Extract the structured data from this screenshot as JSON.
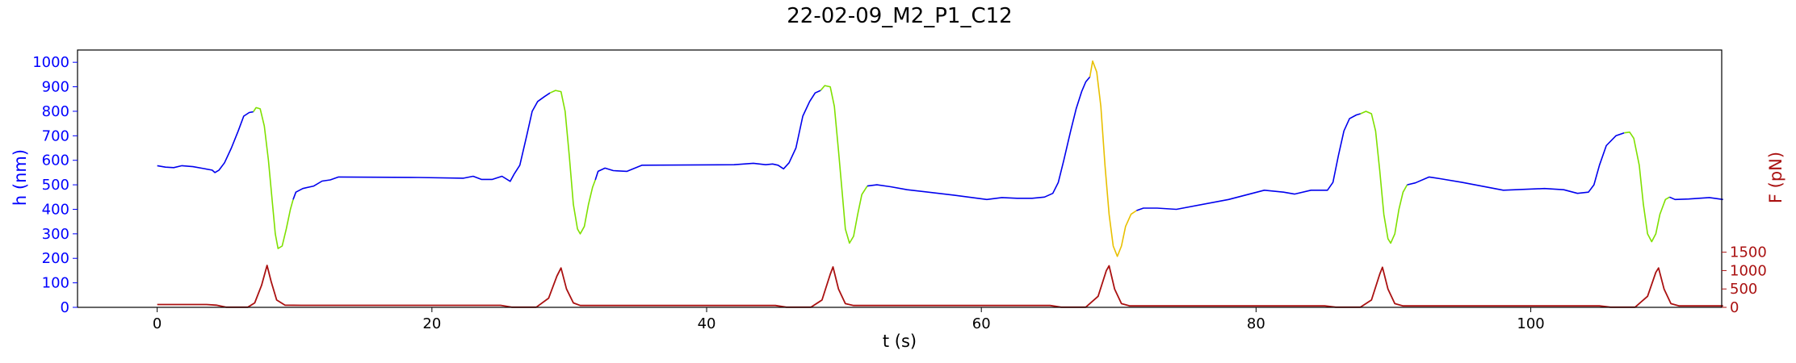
{
  "chart_data": {
    "type": "line",
    "title": "22-02-09_M2_P1_C12",
    "xlabel": "t (s)",
    "ylabel_left": "h (nm)",
    "ylabel_right": "F (pN)",
    "xlim": [
      -5.8,
      113.9
    ],
    "ylim_left": [
      0,
      1050
    ],
    "ylim_right": [
      0,
      7000
    ],
    "x_ticks": [
      0,
      20,
      40,
      60,
      80,
      100
    ],
    "y_ticks_left": [
      0,
      100,
      200,
      300,
      400,
      500,
      600,
      700,
      800,
      900,
      1000
    ],
    "y_ticks_right": [
      0,
      500,
      1000,
      1500
    ],
    "grid": false,
    "colors": {
      "height_base": "#0000ee",
      "height_retract": "#7fe000",
      "height_retract_alt": "#e8c000",
      "force": "#aa1111",
      "left_axis": "#0000ff",
      "right_axis": "#aa1111"
    },
    "height_segments": [
      {
        "color": "height_base",
        "points": [
          [
            0,
            578
          ],
          [
            0.6,
            572
          ],
          [
            1.2,
            570
          ],
          [
            1.8,
            578
          ],
          [
            2.6,
            574
          ],
          [
            3.4,
            566
          ],
          [
            4,
            560
          ],
          [
            4.2,
            550
          ],
          [
            4.5,
            560
          ],
          [
            4.9,
            590
          ],
          [
            5.4,
            650
          ],
          [
            5.9,
            720
          ],
          [
            6.3,
            780
          ],
          [
            6.7,
            795
          ],
          [
            7.0,
            798
          ]
        ]
      },
      {
        "color": "height_retract",
        "points": [
          [
            7.0,
            798
          ],
          [
            7.2,
            815
          ],
          [
            7.5,
            810
          ],
          [
            7.8,
            740
          ],
          [
            8.1,
            600
          ],
          [
            8.4,
            420
          ],
          [
            8.6,
            300
          ],
          [
            8.8,
            240
          ],
          [
            9.1,
            250
          ],
          [
            9.4,
            320
          ],
          [
            9.7,
            400
          ],
          [
            9.9,
            440
          ]
        ]
      },
      {
        "color": "height_base",
        "points": [
          [
            9.9,
            440
          ],
          [
            10.1,
            470
          ],
          [
            10.6,
            485
          ],
          [
            11.4,
            495
          ],
          [
            12.0,
            515
          ],
          [
            12.6,
            520
          ],
          [
            13.2,
            532
          ],
          [
            19,
            530
          ],
          [
            22.3,
            527
          ],
          [
            23,
            535
          ],
          [
            23.6,
            522
          ],
          [
            24.4,
            522
          ],
          [
            25.1,
            535
          ],
          [
            25.7,
            514
          ],
          [
            26,
            545
          ],
          [
            26.4,
            580
          ],
          [
            26.9,
            700
          ],
          [
            27.3,
            800
          ],
          [
            27.7,
            840
          ],
          [
            28.2,
            860
          ],
          [
            28.6,
            875
          ]
        ]
      },
      {
        "color": "height_retract",
        "points": [
          [
            28.6,
            875
          ],
          [
            29.0,
            885
          ],
          [
            29.4,
            880
          ],
          [
            29.7,
            800
          ],
          [
            30.0,
            620
          ],
          [
            30.3,
            420
          ],
          [
            30.6,
            320
          ],
          [
            30.8,
            300
          ],
          [
            31.1,
            330
          ],
          [
            31.4,
            420
          ],
          [
            31.7,
            490
          ],
          [
            31.9,
            520
          ]
        ]
      },
      {
        "color": "height_base",
        "points": [
          [
            31.9,
            520
          ],
          [
            32.1,
            555
          ],
          [
            32.6,
            568
          ],
          [
            33.2,
            558
          ],
          [
            34.2,
            555
          ],
          [
            35.3,
            580
          ],
          [
            42,
            582
          ],
          [
            43.4,
            588
          ],
          [
            44.3,
            582
          ],
          [
            44.8,
            585
          ],
          [
            45.2,
            580
          ],
          [
            45.6,
            565
          ],
          [
            46,
            590
          ],
          [
            46.5,
            650
          ],
          [
            47,
            780
          ],
          [
            47.5,
            840
          ],
          [
            47.9,
            875
          ],
          [
            48.3,
            885
          ]
        ]
      },
      {
        "color": "height_retract",
        "points": [
          [
            48.3,
            885
          ],
          [
            48.6,
            905
          ],
          [
            49.0,
            900
          ],
          [
            49.3,
            820
          ],
          [
            49.6,
            640
          ],
          [
            49.9,
            450
          ],
          [
            50.1,
            320
          ],
          [
            50.4,
            262
          ],
          [
            50.7,
            290
          ],
          [
            51.0,
            380
          ],
          [
            51.3,
            460
          ],
          [
            51.7,
            495
          ]
        ]
      },
      {
        "color": "height_base",
        "points": [
          [
            51.7,
            495
          ],
          [
            52.4,
            500
          ],
          [
            53.4,
            492
          ],
          [
            54.6,
            480
          ],
          [
            58,
            458
          ],
          [
            60.4,
            440
          ],
          [
            61.5,
            448
          ],
          [
            62.6,
            445
          ],
          [
            63.7,
            445
          ],
          [
            64.6,
            450
          ],
          [
            65.2,
            465
          ],
          [
            65.6,
            510
          ],
          [
            66.0,
            600
          ],
          [
            66.5,
            720
          ],
          [
            66.9,
            810
          ],
          [
            67.3,
            880
          ],
          [
            67.6,
            920
          ],
          [
            67.9,
            940
          ]
        ]
      },
      {
        "color": "height_retract_alt",
        "points": [
          [
            67.9,
            940
          ],
          [
            68.1,
            1005
          ],
          [
            68.4,
            960
          ],
          [
            68.7,
            820
          ],
          [
            69.0,
            580
          ],
          [
            69.3,
            380
          ],
          [
            69.6,
            250
          ],
          [
            69.9,
            208
          ],
          [
            70.2,
            250
          ],
          [
            70.5,
            330
          ],
          [
            70.9,
            380
          ],
          [
            71.3,
            395
          ]
        ]
      },
      {
        "color": "height_base",
        "points": [
          [
            71.3,
            395
          ],
          [
            71.8,
            405
          ],
          [
            72.8,
            405
          ],
          [
            74.2,
            400
          ],
          [
            78,
            440
          ],
          [
            80.6,
            478
          ],
          [
            82,
            470
          ],
          [
            82.8,
            462
          ],
          [
            84,
            478
          ],
          [
            85.2,
            478
          ],
          [
            85.6,
            510
          ],
          [
            86.0,
            620
          ],
          [
            86.4,
            720
          ],
          [
            86.8,
            770
          ],
          [
            87.3,
            785
          ],
          [
            87.6,
            790
          ]
        ]
      },
      {
        "color": "height_retract",
        "points": [
          [
            87.6,
            790
          ],
          [
            88.0,
            800
          ],
          [
            88.4,
            790
          ],
          [
            88.7,
            720
          ],
          [
            89.0,
            560
          ],
          [
            89.3,
            380
          ],
          [
            89.6,
            280
          ],
          [
            89.8,
            262
          ],
          [
            90.1,
            300
          ],
          [
            90.4,
            400
          ],
          [
            90.7,
            470
          ],
          [
            91.0,
            500
          ]
        ]
      },
      {
        "color": "height_base",
        "points": [
          [
            91.0,
            500
          ],
          [
            91.6,
            508
          ],
          [
            92.6,
            532
          ],
          [
            93.4,
            525
          ],
          [
            95,
            510
          ],
          [
            98,
            478
          ],
          [
            101,
            485
          ],
          [
            102.4,
            480
          ],
          [
            103.4,
            465
          ],
          [
            104.2,
            470
          ],
          [
            104.6,
            500
          ],
          [
            105,
            580
          ],
          [
            105.5,
            660
          ],
          [
            106.2,
            700
          ],
          [
            106.8,
            712
          ]
        ]
      },
      {
        "color": "height_retract",
        "points": [
          [
            106.8,
            712
          ],
          [
            107.2,
            715
          ],
          [
            107.5,
            690
          ],
          [
            107.9,
            580
          ],
          [
            108.2,
            420
          ],
          [
            108.5,
            300
          ],
          [
            108.8,
            268
          ],
          [
            109.1,
            300
          ],
          [
            109.4,
            380
          ],
          [
            109.8,
            440
          ],
          [
            110.1,
            450
          ]
        ]
      },
      {
        "color": "height_base",
        "points": [
          [
            110.1,
            450
          ],
          [
            110.5,
            440
          ],
          [
            111.5,
            442
          ],
          [
            113,
            448
          ],
          [
            114,
            440
          ]
        ]
      }
    ],
    "force_series": {
      "color": "force",
      "points": [
        [
          0,
          77
        ],
        [
          3.6,
          77
        ],
        [
          4.3,
          60
        ],
        [
          5.0,
          4
        ],
        [
          6.6,
          4
        ],
        [
          7.1,
          120
        ],
        [
          7.6,
          600
        ],
        [
          8.0,
          1140
        ],
        [
          8.3,
          700
        ],
        [
          8.7,
          200
        ],
        [
          9.3,
          60
        ],
        [
          10.5,
          55
        ],
        [
          25,
          55
        ],
        [
          25.8,
          5
        ],
        [
          27.6,
          5
        ],
        [
          28.5,
          250
        ],
        [
          29.1,
          850
        ],
        [
          29.4,
          1070
        ],
        [
          29.8,
          500
        ],
        [
          30.3,
          120
        ],
        [
          30.8,
          50
        ],
        [
          45,
          50
        ],
        [
          45.8,
          5
        ],
        [
          47.6,
          5
        ],
        [
          48.4,
          200
        ],
        [
          49.0,
          900
        ],
        [
          49.2,
          1100
        ],
        [
          49.6,
          500
        ],
        [
          50.1,
          100
        ],
        [
          50.7,
          50
        ],
        [
          65,
          50
        ],
        [
          65.8,
          5
        ],
        [
          67.6,
          5
        ],
        [
          68.5,
          300
        ],
        [
          69.1,
          1000
        ],
        [
          69.3,
          1130
        ],
        [
          69.7,
          500
        ],
        [
          70.2,
          100
        ],
        [
          70.8,
          40
        ],
        [
          85,
          40
        ],
        [
          85.8,
          5
        ],
        [
          87.6,
          5
        ],
        [
          88.4,
          200
        ],
        [
          89.0,
          900
        ],
        [
          89.2,
          1090
        ],
        [
          89.6,
          500
        ],
        [
          90.1,
          100
        ],
        [
          90.7,
          40
        ],
        [
          105,
          40
        ],
        [
          105.8,
          5
        ],
        [
          107.6,
          5
        ],
        [
          108.5,
          300
        ],
        [
          109.1,
          950
        ],
        [
          109.3,
          1070
        ],
        [
          109.7,
          500
        ],
        [
          110.2,
          100
        ],
        [
          110.8,
          40
        ],
        [
          114,
          40
        ]
      ]
    }
  }
}
